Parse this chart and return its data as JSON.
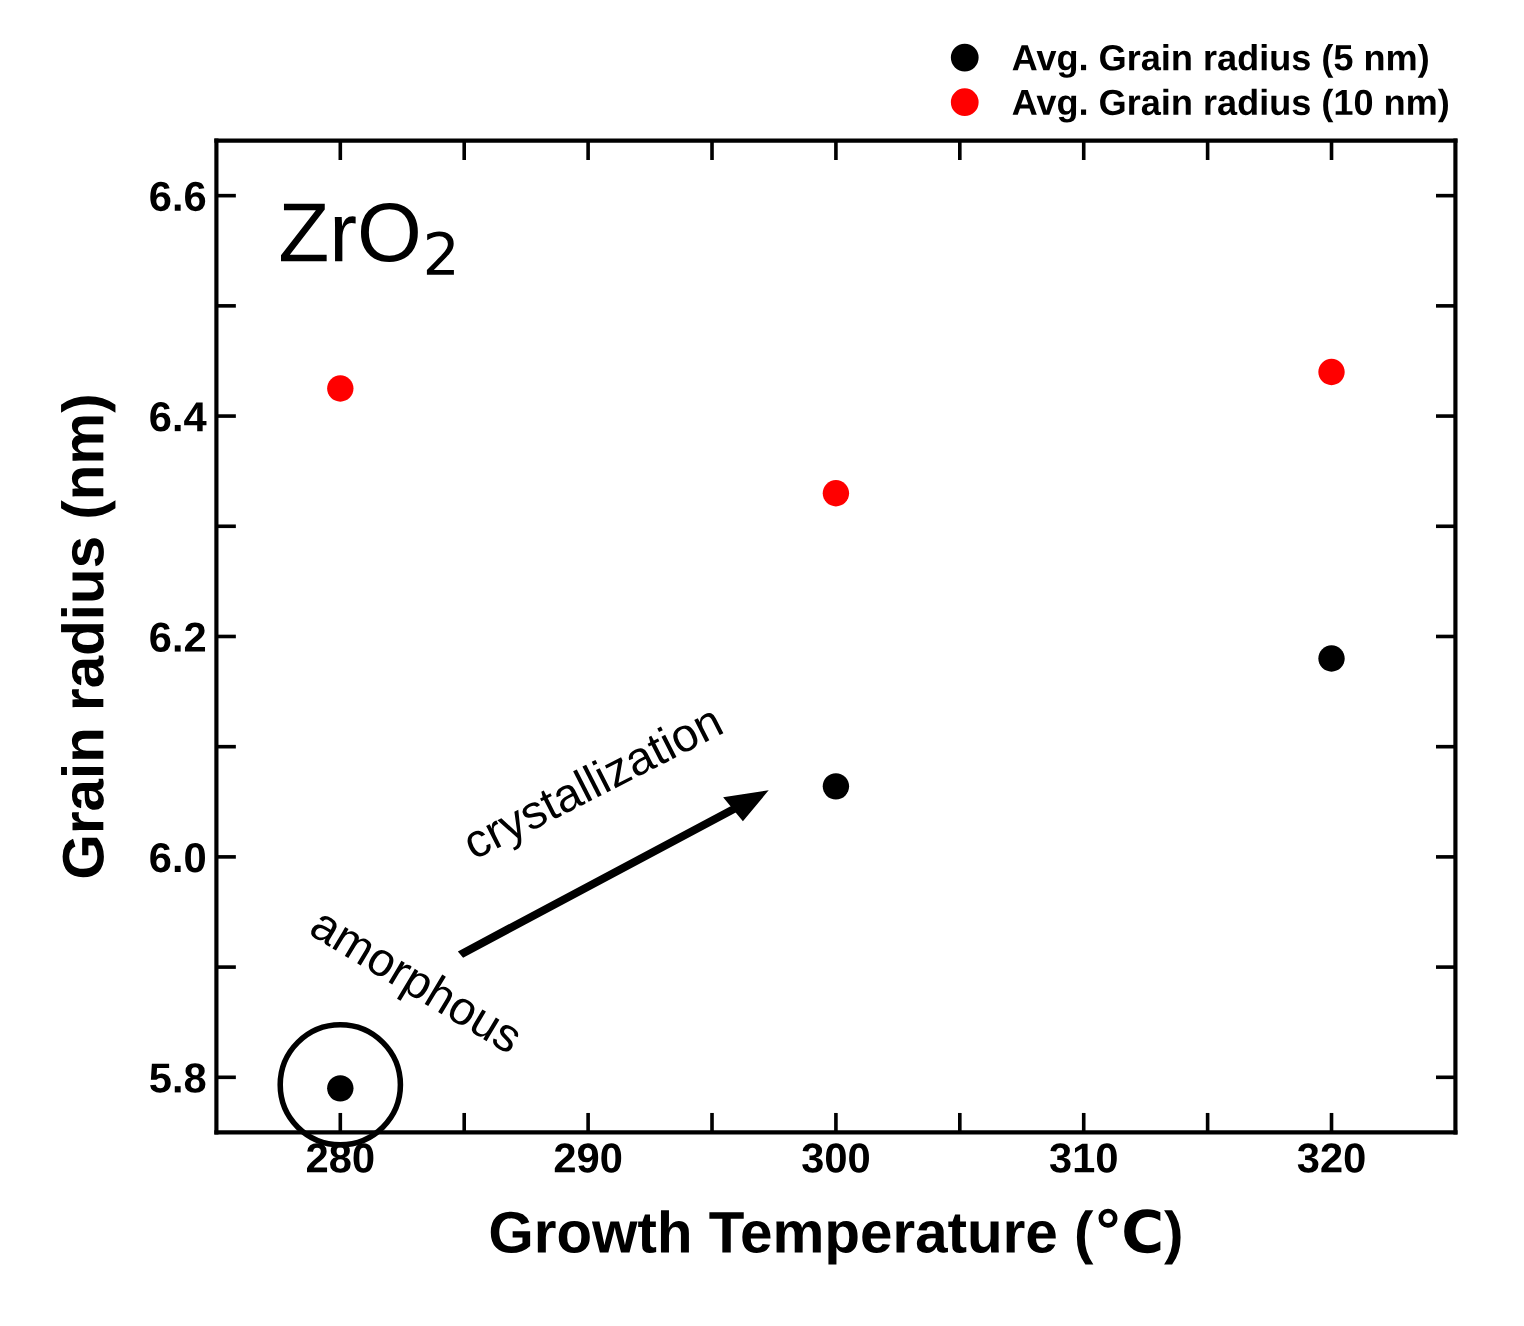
{
  "chart_data": {
    "type": "scatter",
    "xlabel": "Growth Temperature (℃)",
    "ylabel": "Grain radius (nm)",
    "x": [
      280,
      300,
      320
    ],
    "series": [
      {
        "name": "Avg. Grain radius (5 nm)",
        "color": "#000000",
        "values": [
          5.79,
          6.064,
          6.18
        ]
      },
      {
        "name": "Avg. Grain radius (10 nm)",
        "color": "#ff0000",
        "values": [
          6.425,
          6.33,
          6.44
        ]
      }
    ],
    "xlim": [
      275,
      325
    ],
    "xticks": [
      280,
      {
        "value": 285,
        "label": null
      },
      290,
      {
        "value": 295,
        "label": null
      },
      300,
      {
        "value": 305,
        "label": null
      },
      310,
      {
        "value": 315,
        "label": null
      },
      320
    ],
    "ylim": [
      5.75,
      6.65
    ],
    "yticks": [
      {
        "value": 5.8,
        "label": "5.8"
      },
      {
        "value": 5.9,
        "label": null
      },
      {
        "value": 6.0,
        "label": "6.0"
      },
      {
        "value": 6.1,
        "label": null
      },
      {
        "value": 6.2,
        "label": "6.2"
      },
      {
        "value": 6.3,
        "label": null
      },
      {
        "value": 6.4,
        "label": "6.4"
      },
      {
        "value": 6.5,
        "label": null
      },
      {
        "value": 6.6,
        "label": "6.6"
      }
    ],
    "annotations": [
      "ZrO$_{2}$",
      "crystallization",
      "amorphous"
    ],
    "marker": "circle",
    "legend": "top right",
    "grid": false
  }
}
